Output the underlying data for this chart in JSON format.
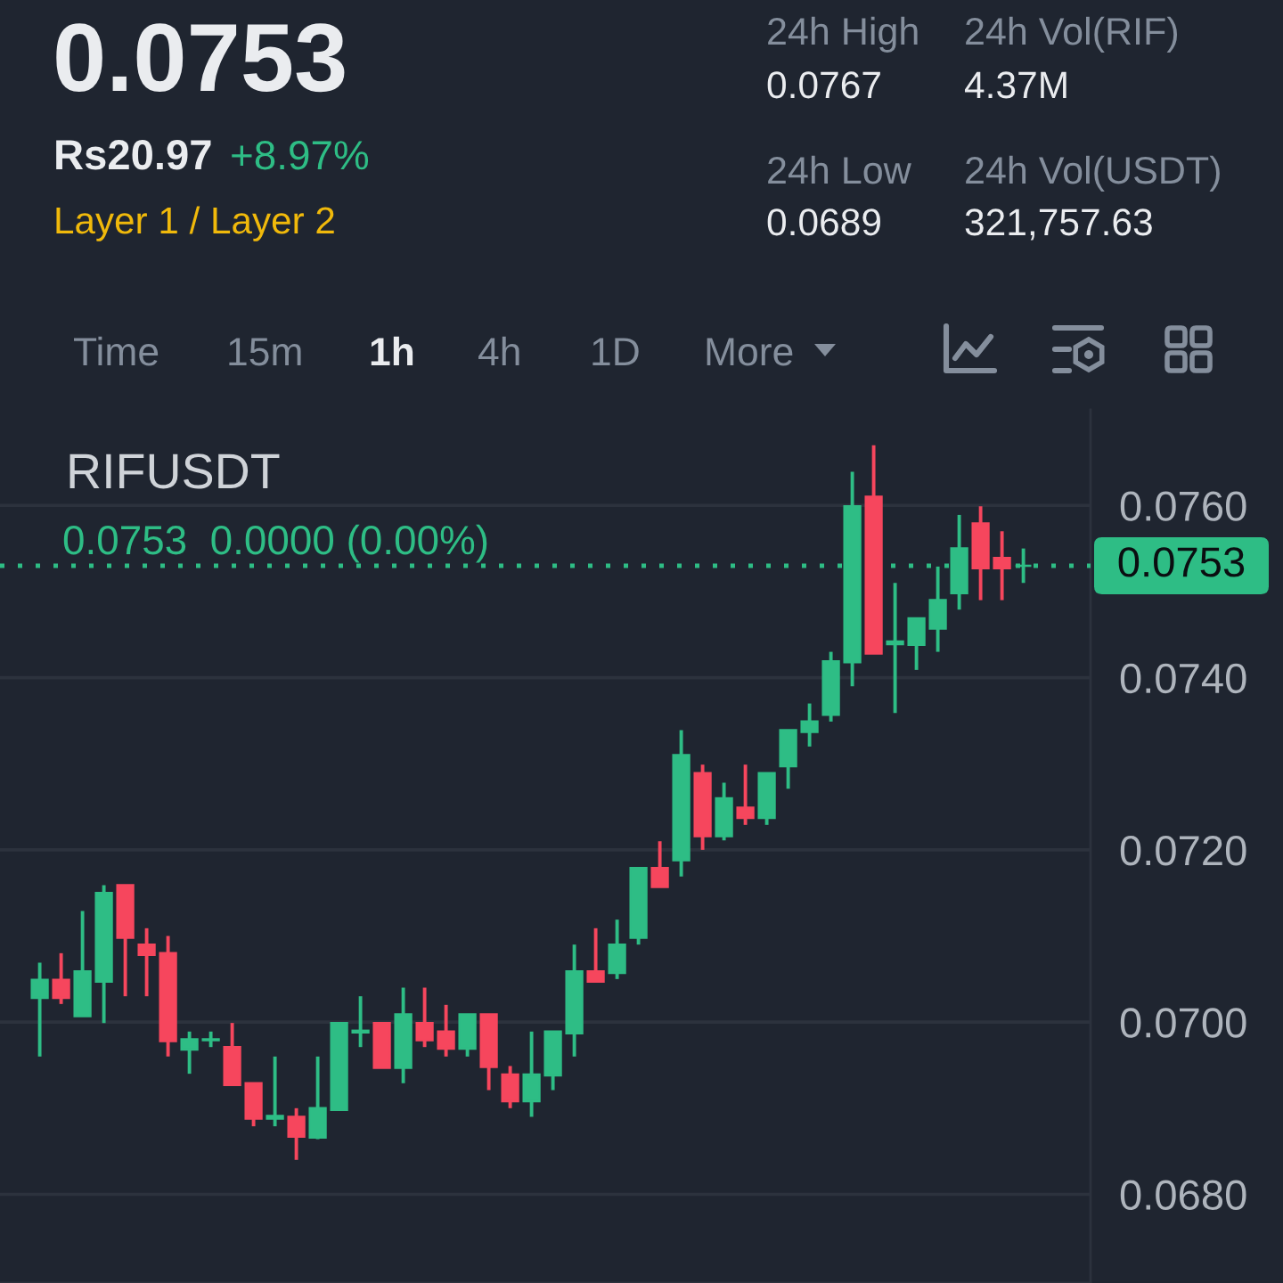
{
  "chart_data": {
    "type": "candlestick",
    "title": "RIFUSDT",
    "annotations": [
      "0.0753",
      "Rs20.97",
      "+8.97%",
      "Layer 1 / Layer 2",
      "24h High",
      "0.0767",
      "24h Vol(RIF)",
      "4.37M",
      "24h Low",
      "0.0689",
      "24h Vol(USDT)",
      "321,757.63",
      "Time",
      "15m",
      "1h",
      "4h",
      "1D",
      "More",
      "0.0753  0.0000 (0.00%)"
    ],
    "categories": [
      null,
      null,
      null,
      null,
      null,
      null,
      null,
      null,
      null,
      null,
      null,
      null,
      null,
      null,
      null,
      null,
      null,
      null,
      null,
      null,
      null,
      null,
      null,
      null,
      null,
      null,
      null,
      null,
      null,
      null,
      null,
      null,
      null,
      null,
      null,
      null,
      null,
      null,
      null,
      null,
      null,
      null,
      null,
      null,
      null,
      null,
      null
    ],
    "ohlc": [
      [
        0.07028,
        0.07069,
        0.0696,
        0.07049
      ],
      [
        0.07049,
        0.0708,
        0.07021,
        0.07028
      ],
      [
        0.07007,
        0.07129,
        0.07007,
        0.07059
      ],
      [
        0.07047,
        0.07159,
        0.06999,
        0.0715
      ],
      [
        0.07159,
        0.07159,
        0.0703,
        0.07098
      ],
      [
        0.0709,
        0.07109,
        0.0703,
        0.07078
      ],
      [
        0.0708,
        0.071,
        0.0696,
        0.06978
      ],
      [
        0.06968,
        0.06989,
        0.0694,
        0.0698
      ],
      [
        0.06979,
        0.06989,
        0.06971,
        0.0698
      ],
      [
        0.06971,
        0.06999,
        0.06927,
        0.06927
      ],
      [
        0.06929,
        0.06929,
        0.06879,
        0.06888
      ],
      [
        0.06888,
        0.0696,
        0.06879,
        0.06891
      ],
      [
        0.0689,
        0.069,
        0.0684,
        0.06867
      ],
      [
        0.06866,
        0.0696,
        0.06864,
        0.069
      ],
      [
        0.06898,
        0.06999,
        0.06898,
        0.06999
      ],
      [
        0.06988,
        0.0703,
        0.06971,
        0.0699
      ],
      [
        0.06999,
        0.06999,
        0.06947,
        0.06947
      ],
      [
        0.06947,
        0.0704,
        0.06929,
        0.07009
      ],
      [
        0.06999,
        0.0704,
        0.06971,
        0.06979
      ],
      [
        0.06989,
        0.0702,
        0.0696,
        0.06969
      ],
      [
        0.06969,
        0.07009,
        0.0696,
        0.07009
      ],
      [
        0.07009,
        0.07009,
        0.06921,
        0.06948
      ],
      [
        0.06939,
        0.06949,
        0.069,
        0.06908
      ],
      [
        0.06908,
        0.06989,
        0.0689,
        0.06939
      ],
      [
        0.06938,
        0.06989,
        0.06921,
        0.06989
      ],
      [
        0.06987,
        0.0709,
        0.0696,
        0.07059
      ],
      [
        0.07059,
        0.07109,
        0.07047,
        0.07047
      ],
      [
        0.07057,
        0.07119,
        0.0705,
        0.0709
      ],
      [
        0.07098,
        0.07179,
        0.0709,
        0.07179
      ],
      [
        0.07179,
        0.0721,
        0.07157,
        0.07157
      ],
      [
        0.07188,
        0.07339,
        0.07169,
        0.0731
      ],
      [
        0.07289,
        0.07299,
        0.072,
        0.07216
      ],
      [
        0.07216,
        0.07278,
        0.07211,
        0.0726
      ],
      [
        0.07249,
        0.07299,
        0.07229,
        0.07237
      ],
      [
        0.07237,
        0.07289,
        0.07229,
        0.07289
      ],
      [
        0.07297,
        0.07339,
        0.07271,
        0.07339
      ],
      [
        0.07337,
        0.0737,
        0.0732,
        0.07349
      ],
      [
        0.07357,
        0.0743,
        0.07349,
        0.07419
      ],
      [
        0.07418,
        0.07639,
        0.0739,
        0.07599
      ],
      [
        0.0761,
        0.0767,
        0.07428,
        0.07428
      ],
      [
        0.07439,
        0.0751,
        0.07359,
        0.07442
      ],
      [
        0.07438,
        0.07469,
        0.07409,
        0.07469
      ],
      [
        0.07457,
        0.07529,
        0.0743,
        0.0749
      ],
      [
        0.07498,
        0.07589,
        0.07479,
        0.0755
      ],
      [
        0.07579,
        0.07599,
        0.0749,
        0.07527
      ],
      [
        0.07539,
        0.0757,
        0.0749,
        0.07527
      ],
      [
        0.0753,
        0.0755,
        0.0751,
        0.0753
      ]
    ],
    "colors": [
      "#2ebd85",
      "#f6465d",
      "#2ebd85",
      "#2ebd85",
      "#f6465d",
      "#f6465d",
      "#f6465d",
      "#2ebd85",
      "#2ebd85",
      "#f6465d",
      "#f6465d",
      "#2ebd85",
      "#f6465d",
      "#2ebd85",
      "#2ebd85",
      "#2ebd85",
      "#f6465d",
      "#2ebd85",
      "#f6465d",
      "#f6465d",
      "#2ebd85",
      "#f6465d",
      "#f6465d",
      "#2ebd85",
      "#2ebd85",
      "#2ebd85",
      "#f6465d",
      "#2ebd85",
      "#2ebd85",
      "#f6465d",
      "#2ebd85",
      "#f6465d",
      "#2ebd85",
      "#f6465d",
      "#2ebd85",
      "#2ebd85",
      "#2ebd85",
      "#2ebd85",
      "#2ebd85",
      "#f6465d",
      "#2ebd85",
      "#2ebd85",
      "#2ebd85",
      "#2ebd85",
      "#f6465d",
      "#f6465d",
      "#2ebd85"
    ],
    "ylim": [
      0.06697,
      0.07711
    ],
    "yticks": [
      {
        "value": 0.068,
        "label": "0.0680"
      },
      {
        "value": 0.07,
        "label": "0.0700"
      },
      {
        "value": 0.072,
        "label": "0.0720"
      },
      {
        "value": 0.074,
        "label": "0.0740"
      },
      {
        "value": 0.076,
        "label": "0.0760"
      }
    ],
    "ref_lines": [
      {
        "axis": "y",
        "value": 0.0753,
        "label": "0.0753",
        "color": "#2ebd85",
        "line_style": "dotted"
      }
    ],
    "grid": "y",
    "tick_labels": "y"
  }
}
